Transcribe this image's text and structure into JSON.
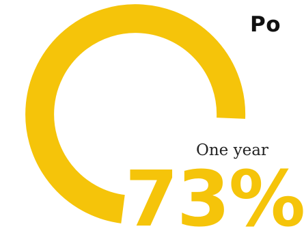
{
  "heading": {
    "text": "Po"
  },
  "subtext": {
    "text": "One year"
  },
  "stat": {
    "value_text": "73%",
    "value": 73
  },
  "colors": {
    "accent": "#f5c40a",
    "track": "#ffffff",
    "text": "#111111"
  }
}
